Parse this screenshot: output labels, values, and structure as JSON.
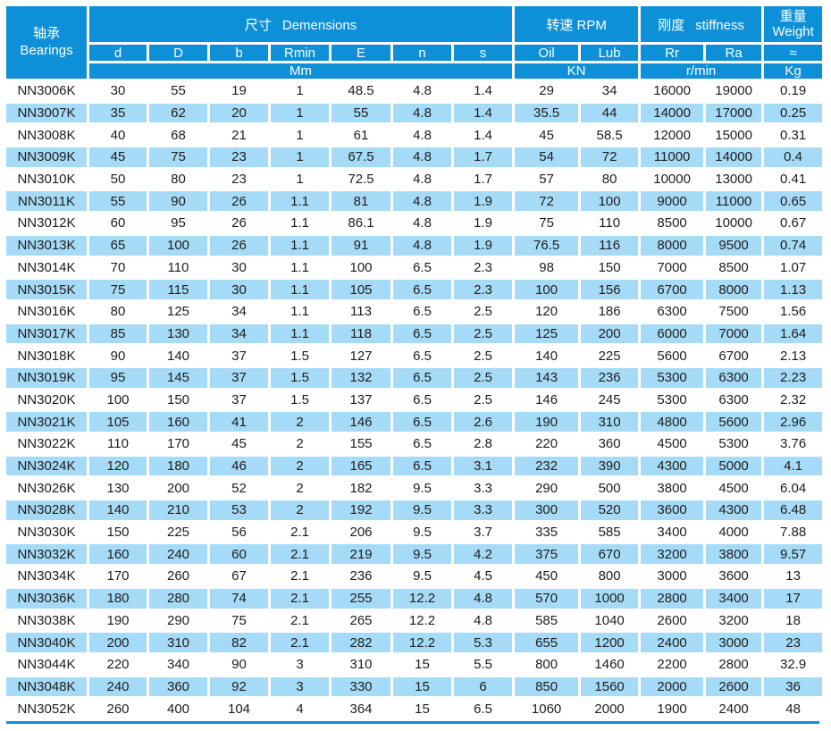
{
  "table": {
    "header": {
      "bearings": {
        "zh": "轴承",
        "en": "Bearings"
      },
      "groups": {
        "dimensions": {
          "zh": "尺寸",
          "en": "Demensions",
          "unit": "Mm"
        },
        "rpm": {
          "zh": "转速",
          "en": "RPM",
          "unit": "KN"
        },
        "stiffness": {
          "zh": "刚度",
          "en": "stiffness",
          "unit": "r/min"
        },
        "weight": {
          "zh": "重量",
          "en": "Weight",
          "unit": "Kg"
        }
      },
      "columns": [
        "d",
        "D",
        "b",
        "Rmin",
        "E",
        "n",
        "s",
        "Oil",
        "Lub",
        "Rr",
        "Ra",
        "≈"
      ]
    },
    "rows": [
      [
        "NN3006K",
        "30",
        "55",
        "19",
        "1",
        "48.5",
        "4.8",
        "1.4",
        "29",
        "34",
        "16000",
        "19000",
        "0.19"
      ],
      [
        "NN3007K",
        "35",
        "62",
        "20",
        "1",
        "55",
        "4.8",
        "1.4",
        "35.5",
        "44",
        "14000",
        "17000",
        "0.25"
      ],
      [
        "NN3008K",
        "40",
        "68",
        "21",
        "1",
        "61",
        "4.8",
        "1.4",
        "45",
        "58.5",
        "12000",
        "15000",
        "0.31"
      ],
      [
        "NN3009K",
        "45",
        "75",
        "23",
        "1",
        "67.5",
        "4.8",
        "1.7",
        "54",
        "72",
        "11000",
        "14000",
        "0.4"
      ],
      [
        "NN3010K",
        "50",
        "80",
        "23",
        "1",
        "72.5",
        "4.8",
        "1.7",
        "57",
        "80",
        "10000",
        "13000",
        "0.41"
      ],
      [
        "NN3011K",
        "55",
        "90",
        "26",
        "1.1",
        "81",
        "4.8",
        "1.9",
        "72",
        "100",
        "9000",
        "11000",
        "0.65"
      ],
      [
        "NN3012K",
        "60",
        "95",
        "26",
        "1.1",
        "86.1",
        "4.8",
        "1.9",
        "75",
        "110",
        "8500",
        "10000",
        "0.67"
      ],
      [
        "NN3013K",
        "65",
        "100",
        "26",
        "1.1",
        "91",
        "4.8",
        "1.9",
        "76.5",
        "116",
        "8000",
        "9500",
        "0.74"
      ],
      [
        "NN3014K",
        "70",
        "110",
        "30",
        "1.1",
        "100",
        "6.5",
        "2.3",
        "98",
        "150",
        "7000",
        "8500",
        "1.07"
      ],
      [
        "NN3015K",
        "75",
        "115",
        "30",
        "1.1",
        "105",
        "6.5",
        "2.3",
        "100",
        "156",
        "6700",
        "8000",
        "1.13"
      ],
      [
        "NN3016K",
        "80",
        "125",
        "34",
        "1.1",
        "113",
        "6.5",
        "2.5",
        "120",
        "186",
        "6300",
        "7500",
        "1.56"
      ],
      [
        "NN3017K",
        "85",
        "130",
        "34",
        "1.1",
        "118",
        "6.5",
        "2.5",
        "125",
        "200",
        "6000",
        "7000",
        "1.64"
      ],
      [
        "NN3018K",
        "90",
        "140",
        "37",
        "1.5",
        "127",
        "6.5",
        "2.5",
        "140",
        "225",
        "5600",
        "6700",
        "2.13"
      ],
      [
        "NN3019K",
        "95",
        "145",
        "37",
        "1.5",
        "132",
        "6.5",
        "2.5",
        "143",
        "236",
        "5300",
        "6300",
        "2.23"
      ],
      [
        "NN3020K",
        "100",
        "150",
        "37",
        "1.5",
        "137",
        "6.5",
        "2.5",
        "146",
        "245",
        "5300",
        "6300",
        "2.32"
      ],
      [
        "NN3021K",
        "105",
        "160",
        "41",
        "2",
        "146",
        "6.5",
        "2.6",
        "190",
        "310",
        "4800",
        "5600",
        "2.96"
      ],
      [
        "NN3022K",
        "110",
        "170",
        "45",
        "2",
        "155",
        "6.5",
        "2.8",
        "220",
        "360",
        "4500",
        "5300",
        "3.76"
      ],
      [
        "NN3024K",
        "120",
        "180",
        "46",
        "2",
        "165",
        "6.5",
        "3.1",
        "232",
        "390",
        "4300",
        "5000",
        "4.1"
      ],
      [
        "NN3026K",
        "130",
        "200",
        "52",
        "2",
        "182",
        "9.5",
        "3.3",
        "290",
        "500",
        "3800",
        "4500",
        "6.04"
      ],
      [
        "NN3028K",
        "140",
        "210",
        "53",
        "2",
        "192",
        "9.5",
        "3.3",
        "300",
        "520",
        "3600",
        "4300",
        "6.48"
      ],
      [
        "NN3030K",
        "150",
        "225",
        "56",
        "2.1",
        "206",
        "9.5",
        "3.7",
        "335",
        "585",
        "3400",
        "4000",
        "7.88"
      ],
      [
        "NN3032K",
        "160",
        "240",
        "60",
        "2.1",
        "219",
        "9.5",
        "4.2",
        "375",
        "670",
        "3200",
        "3800",
        "9.57"
      ],
      [
        "NN3034K",
        "170",
        "260",
        "67",
        "2.1",
        "236",
        "9.5",
        "4.5",
        "450",
        "800",
        "3000",
        "3600",
        "13"
      ],
      [
        "NN3036K",
        "180",
        "280",
        "74",
        "2.1",
        "255",
        "12.2",
        "4.8",
        "570",
        "1000",
        "2800",
        "3400",
        "17"
      ],
      [
        "NN3038K",
        "190",
        "290",
        "75",
        "2.1",
        "265",
        "12.2",
        "4.8",
        "585",
        "1040",
        "2600",
        "3200",
        "18"
      ],
      [
        "NN3040K",
        "200",
        "310",
        "82",
        "2.1",
        "282",
        "12.2",
        "5.3",
        "655",
        "1200",
        "2400",
        "3000",
        "23"
      ],
      [
        "NN3044K",
        "220",
        "340",
        "90",
        "3",
        "310",
        "15",
        "5.5",
        "800",
        "1460",
        "2200",
        "2800",
        "32.9"
      ],
      [
        "NN3048K",
        "240",
        "360",
        "92",
        "3",
        "330",
        "15",
        "6",
        "850",
        "1560",
        "2000",
        "2600",
        "36"
      ],
      [
        "NN3052K",
        "260",
        "400",
        "104",
        "4",
        "364",
        "15",
        "6.5",
        "1060",
        "2000",
        "1900",
        "2400",
        "48"
      ]
    ]
  },
  "colors": {
    "header_blue": "#0e90d8",
    "row_blue": "#a6dbf7",
    "text": "#1d1d1d"
  }
}
